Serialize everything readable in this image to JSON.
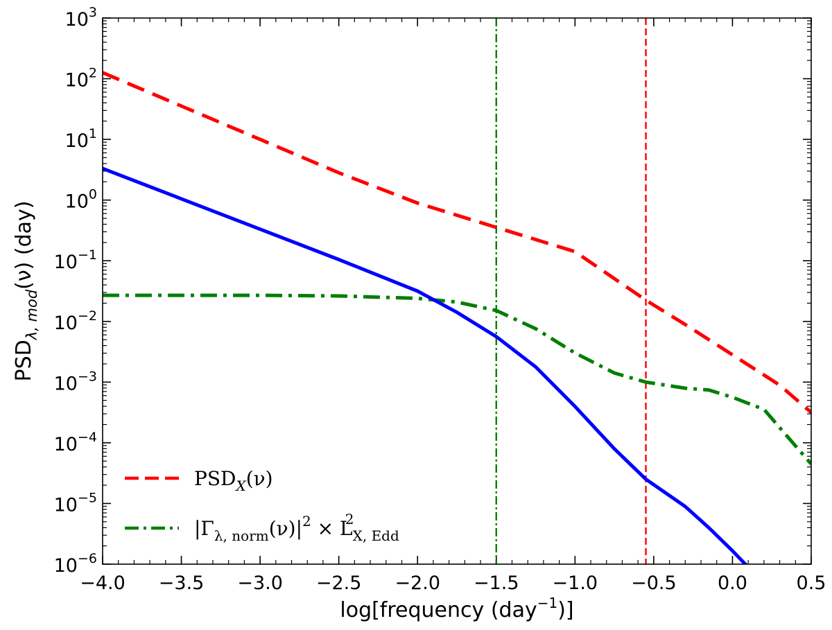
{
  "chart_data": {
    "type": "line",
    "xlabel_parts": {
      "pre": "log[frequency (day",
      "sup": "−1",
      "post": ")]"
    },
    "ylabel_parts": {
      "pre": "PSD",
      "sub": "λ, mod",
      "post": "(ν) (day)"
    },
    "xlim": [
      -4.0,
      0.5
    ],
    "ylim_log10": [
      -6,
      3
    ],
    "x_ticks": [
      -4.0,
      -3.5,
      -3.0,
      -2.5,
      -2.0,
      -1.5,
      -1.0,
      -0.5,
      0.0,
      0.5
    ],
    "x_tick_labels": [
      "−4.0",
      "−3.5",
      "−3.0",
      "−2.5",
      "−2.0",
      "−1.5",
      "−1.0",
      "−0.5",
      "0.0",
      "0.5"
    ],
    "y_tick_exponents": [
      -6,
      -5,
      -4,
      -3,
      -2,
      -1,
      0,
      1,
      2,
      3
    ],
    "y_tick_labels": [
      {
        "base": "10",
        "exp": "−6"
      },
      {
        "base": "10",
        "exp": "−5"
      },
      {
        "base": "10",
        "exp": "−4"
      },
      {
        "base": "10",
        "exp": "−3"
      },
      {
        "base": "10",
        "exp": "−2"
      },
      {
        "base": "10",
        "exp": "−1"
      },
      {
        "base": "10",
        "exp": "0"
      },
      {
        "base": "10",
        "exp": "1"
      },
      {
        "base": "10",
        "exp": "2"
      },
      {
        "base": "10",
        "exp": "3"
      }
    ],
    "series": [
      {
        "name": "psd-x",
        "color": "#ff0000",
        "style": "dashed",
        "x": [
          -4.0,
          -3.5,
          -3.0,
          -2.5,
          -2.0,
          -1.5,
          -1.0,
          -0.55,
          -0.3,
          0.0,
          0.3,
          0.5
        ],
        "log10_y": [
          2.1,
          1.55,
          1.0,
          0.45,
          -0.05,
          -0.45,
          -0.85,
          -1.65,
          -2.05,
          -2.55,
          -3.05,
          -3.5
        ]
      },
      {
        "name": "gamma-norm",
        "color": "#007f00",
        "style": "dashdot",
        "x": [
          -4.0,
          -3.0,
          -2.5,
          -2.0,
          -1.75,
          -1.5,
          -1.25,
          -1.0,
          -0.75,
          -0.55,
          -0.3,
          -0.15,
          0.0,
          0.2,
          0.35,
          0.5
        ],
        "log10_y": [
          -1.57,
          -1.57,
          -1.58,
          -1.62,
          -1.68,
          -1.82,
          -2.12,
          -2.52,
          -2.85,
          -3.0,
          -3.1,
          -3.13,
          -3.25,
          -3.45,
          -3.9,
          -4.35
        ]
      },
      {
        "name": "psd-model",
        "color": "#0000ff",
        "style": "solid",
        "x": [
          -4.0,
          -3.5,
          -3.0,
          -2.5,
          -2.0,
          -1.75,
          -1.5,
          -1.25,
          -1.0,
          -0.75,
          -0.55,
          -0.3,
          -0.15,
          0.0,
          0.1
        ],
        "log10_y": [
          0.52,
          0.02,
          -0.48,
          -0.98,
          -1.5,
          -1.85,
          -2.25,
          -2.75,
          -3.4,
          -4.1,
          -4.6,
          -5.05,
          -5.4,
          -5.78,
          -6.05
        ]
      }
    ],
    "vlines": [
      {
        "name": "vline-green",
        "x": -1.5,
        "color": "#007f00",
        "style": "dashdot"
      },
      {
        "name": "vline-red",
        "x": -0.55,
        "color": "#ff0000",
        "style": "dashed"
      }
    ],
    "legend": {
      "location": "lower-left",
      "entries": [
        {
          "series": "psd-x",
          "label_base": "PSD",
          "label_sub": "X",
          "label_post": "(ν)"
        },
        {
          "series": "gamma-norm",
          "label_pre": "|Γ",
          "label_sub": "λ, norm",
          "label_mid": "(ν)|",
          "label_sup": "2",
          "label_times": " × L",
          "label_sub2": "X, Edd",
          "label_sup2": "2"
        }
      ]
    }
  }
}
